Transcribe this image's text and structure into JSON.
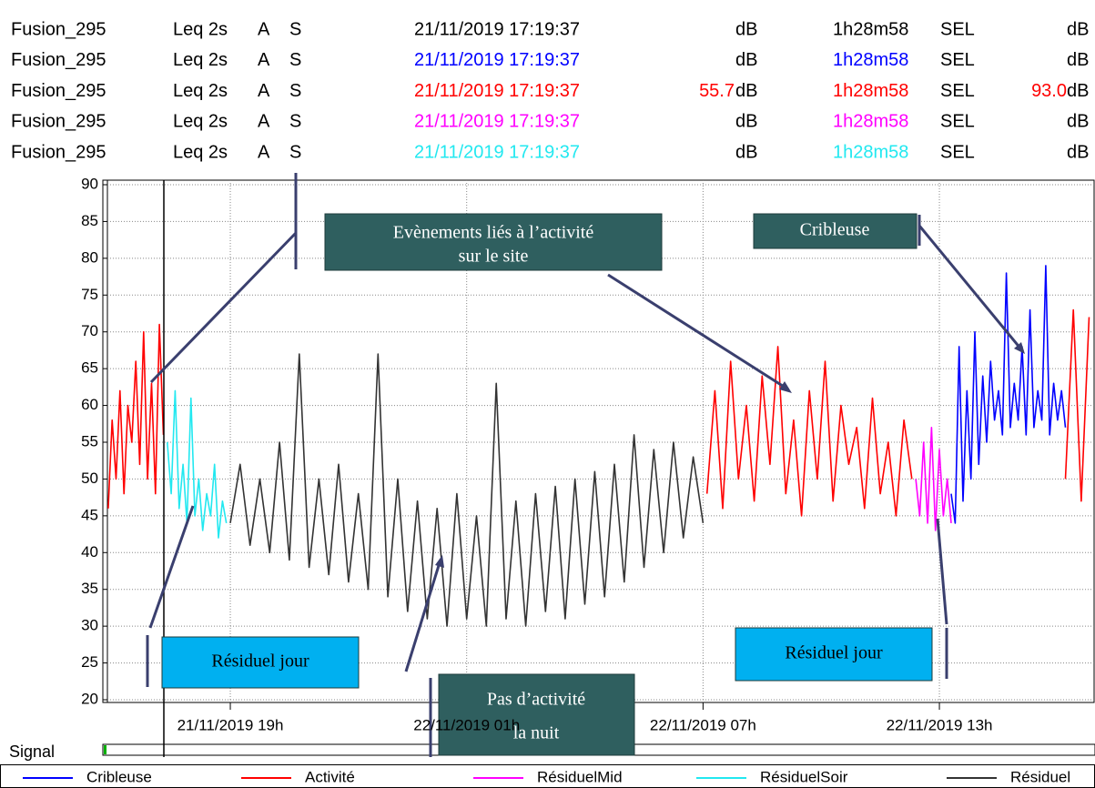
{
  "header": {
    "rows": [
      {
        "source": "Fusion_295",
        "index": "Leq 2s",
        "weighting": "A",
        "speed": "S",
        "date": "21/11/2019 17:19:37",
        "unit": "dB",
        "duration": "1h28m58",
        "sel": "SEL",
        "sel_unit": "dB",
        "color": "#000000"
      },
      {
        "source": "Fusion_295",
        "index": "Leq 2s",
        "weighting": "A",
        "speed": "S",
        "date": "21/11/2019 17:19:37",
        "unit": "dB",
        "duration": "1h28m58",
        "sel": "SEL",
        "sel_unit": "dB",
        "color": "#0000ff"
      },
      {
        "source": "Fusion_295",
        "index": "Leq 2s",
        "weighting": "A",
        "speed": "S",
        "date": "21/11/2019 17:19:37",
        "value": "55.7",
        "unit": "dB",
        "duration": "1h28m58",
        "sel": "SEL",
        "sel_value": "93.0",
        "sel_unit": "dB",
        "color": "#ff0000"
      },
      {
        "source": "Fusion_295",
        "index": "Leq 2s",
        "weighting": "A",
        "speed": "S",
        "date": "21/11/2019 17:19:37",
        "unit": "dB",
        "duration": "1h28m58",
        "sel": "SEL",
        "sel_unit": "dB",
        "color": "#ff00ff"
      },
      {
        "source": "Fusion_295",
        "index": "Leq 2s",
        "weighting": "A",
        "speed": "S",
        "date": "21/11/2019 17:19:37",
        "unit": "dB",
        "duration": "1h28m58",
        "sel": "SEL",
        "sel_unit": "dB",
        "color": "#22e8f0"
      }
    ]
  },
  "signal_label": "Signal",
  "chart_data": {
    "type": "line",
    "xlim": [
      15.88,
      40.95
    ],
    "xticks": [
      {
        "value": 19,
        "label": "21/11/2019 19h"
      },
      {
        "value": 25,
        "label": "22/11/2019 01h"
      },
      {
        "value": 31,
        "label": "22/11/2019 07h"
      },
      {
        "value": 37,
        "label": "22/11/2019 13h"
      }
    ],
    "ylim": [
      20,
      90
    ],
    "yticks": [
      20,
      25,
      30,
      35,
      40,
      45,
      50,
      55,
      60,
      65,
      70,
      75,
      80,
      85,
      90
    ],
    "grid": true,
    "series": [
      {
        "name": "Cribleuse",
        "color": "#0000ff",
        "x": [
          37.3,
          37.4,
          37.5,
          37.6,
          37.7,
          37.8,
          37.9,
          38.0,
          38.1,
          38.2,
          38.3,
          38.4,
          38.5,
          38.6,
          38.7,
          38.8,
          38.9,
          39.0,
          39.1,
          39.2,
          39.3,
          39.4,
          39.5,
          39.6,
          39.7,
          39.8,
          39.9,
          40.0,
          40.1,
          40.2
        ],
        "values": [
          48,
          44,
          68,
          47,
          62,
          50,
          70,
          52,
          64,
          55,
          66,
          58,
          62,
          56,
          78,
          57,
          63,
          58,
          68,
          56,
          73,
          57,
          62,
          58,
          79,
          56,
          63,
          58,
          62,
          57
        ]
      },
      {
        "name": "Activité",
        "color": "#ff0000",
        "x": [
          15.9,
          16.0,
          16.1,
          16.2,
          16.3,
          16.4,
          16.5,
          16.6,
          16.7,
          16.8,
          16.9,
          17.0,
          17.1,
          17.2,
          17.3,
          17.35,
          31.1,
          31.3,
          31.5,
          31.7,
          31.9,
          32.1,
          32.3,
          32.5,
          32.7,
          32.9,
          33.1,
          33.3,
          33.5,
          33.7,
          33.9,
          34.1,
          34.3,
          34.5,
          34.7,
          34.9,
          35.1,
          35.3,
          35.5,
          35.7,
          35.9,
          36.1,
          36.3,
          38.0,
          40.2,
          40.4,
          40.6,
          40.8
        ],
        "values": [
          46,
          58,
          50,
          62,
          48,
          60,
          55,
          66,
          52,
          70,
          50,
          63,
          48,
          71,
          56,
          null,
          48,
          62,
          46,
          66,
          50,
          60,
          47,
          64,
          52,
          68,
          48,
          58,
          45,
          62,
          50,
          66,
          47,
          60,
          52,
          57,
          46,
          61,
          48,
          55,
          45,
          58,
          50,
          null,
          50,
          73,
          47,
          72
        ]
      },
      {
        "name": "RésiduelMid",
        "color": "#ff00ff",
        "x": [
          36.4,
          36.5,
          36.6,
          36.7,
          36.8,
          36.9,
          37.0,
          37.1,
          37.2,
          37.3
        ],
        "values": [
          50,
          45,
          55,
          44,
          57,
          43,
          54,
          45,
          50,
          44
        ]
      },
      {
        "name": "RésiduelSoir",
        "color": "#22e8f0",
        "x": [
          17.4,
          17.5,
          17.6,
          17.7,
          17.8,
          17.9,
          18.0,
          18.1,
          18.2,
          18.3,
          18.4,
          18.5,
          18.6,
          18.7,
          18.8,
          18.9
        ],
        "values": [
          55,
          48,
          62,
          46,
          52,
          44,
          61,
          45,
          50,
          43,
          48,
          45,
          52,
          42,
          47,
          44
        ]
      },
      {
        "name": "Résiduel",
        "color": "#333333",
        "x": [
          19.0,
          19.25,
          19.5,
          19.75,
          20.0,
          20.25,
          20.5,
          20.75,
          21.0,
          21.25,
          21.5,
          21.75,
          22.0,
          22.25,
          22.5,
          22.75,
          23.0,
          23.25,
          23.5,
          23.75,
          24.0,
          24.25,
          24.5,
          24.75,
          25.0,
          25.25,
          25.5,
          25.75,
          26.0,
          26.25,
          26.5,
          26.75,
          27.0,
          27.25,
          27.5,
          27.75,
          28.0,
          28.25,
          28.5,
          28.75,
          29.0,
          29.25,
          29.5,
          29.75,
          30.0,
          30.25,
          30.5,
          30.75,
          31.0
        ],
        "values": [
          44,
          52,
          41,
          50,
          40,
          55,
          39,
          67,
          38,
          50,
          37,
          52,
          36,
          48,
          35,
          67,
          34,
          50,
          32,
          47,
          31,
          46,
          30,
          48,
          31,
          45,
          30,
          63,
          31,
          47,
          30,
          48,
          32,
          49,
          31,
          50,
          33,
          51,
          34,
          52,
          36,
          56,
          38,
          54,
          40,
          55,
          42,
          53,
          44
        ]
      }
    ],
    "annotations": [
      {
        "lines": [
          "Evènements liés à l’activité",
          "sur le site"
        ]
      },
      {
        "lines": [
          "Cribleuse"
        ]
      },
      {
        "lines": [
          "Résiduel jour"
        ]
      },
      {
        "lines": [
          "Résiduel jour"
        ]
      },
      {
        "lines": [
          "Pas d’activité",
          "la nuit"
        ]
      }
    ]
  }
}
